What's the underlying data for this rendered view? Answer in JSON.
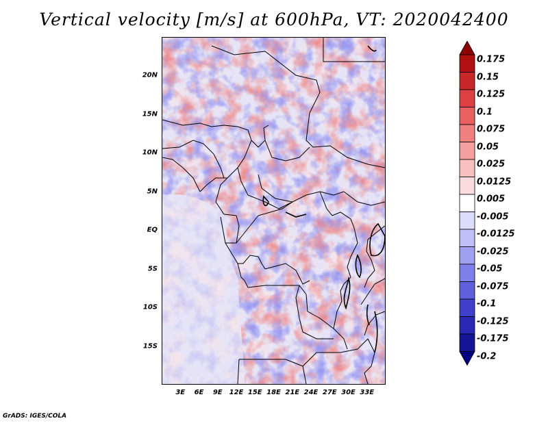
{
  "title": "Vertical velocity [m/s] at 600hPa, VT: 2020042400",
  "credit": "GrADS: IGES/COLA",
  "map": {
    "lon_range": [
      0,
      36
    ],
    "lat_range": [
      -20,
      25
    ],
    "lat_labels": [
      {
        "lat": 20,
        "text": "20N"
      },
      {
        "lat": 15,
        "text": "15N"
      },
      {
        "lat": 10,
        "text": "10N"
      },
      {
        "lat": 5,
        "text": "5N"
      },
      {
        "lat": 0,
        "text": "EQ"
      },
      {
        "lat": -5,
        "text": "5S"
      },
      {
        "lat": -10,
        "text": "10S"
      },
      {
        "lat": -15,
        "text": "15S"
      }
    ],
    "lon_labels": [
      {
        "lon": 3,
        "text": "3E"
      },
      {
        "lon": 6,
        "text": "6E"
      },
      {
        "lon": 9,
        "text": "9E"
      },
      {
        "lon": 12,
        "text": "12E"
      },
      {
        "lon": 15,
        "text": "15E"
      },
      {
        "lon": 18,
        "text": "18E"
      },
      {
        "lon": 21,
        "text": "21E"
      },
      {
        "lon": 24,
        "text": "24E"
      },
      {
        "lon": 27,
        "text": "27E"
      },
      {
        "lon": 30,
        "text": "30E"
      },
      {
        "lon": 33,
        "text": "33E"
      }
    ]
  },
  "colorbar": {
    "levels": [
      "0.175",
      "0.15",
      "0.125",
      "0.1",
      "0.075",
      "0.05",
      "0.025",
      "0.0125",
      "0.005",
      "-0.005",
      "-0.0125",
      "-0.025",
      "-0.05",
      "-0.075",
      "-0.1",
      "-0.125",
      "-0.175",
      "-0.2"
    ],
    "colors": [
      "#8c0000",
      "#b01010",
      "#c82828",
      "#dc4040",
      "#e86060",
      "#f08080",
      "#f5a0a0",
      "#f8c0c0",
      "#fbdcdc",
      "#ffffff",
      "#dcdcfb",
      "#c0c0f8",
      "#a0a0f2",
      "#8080ea",
      "#6060de",
      "#4040cc",
      "#2828b4",
      "#141496",
      "#000080"
    ]
  }
}
